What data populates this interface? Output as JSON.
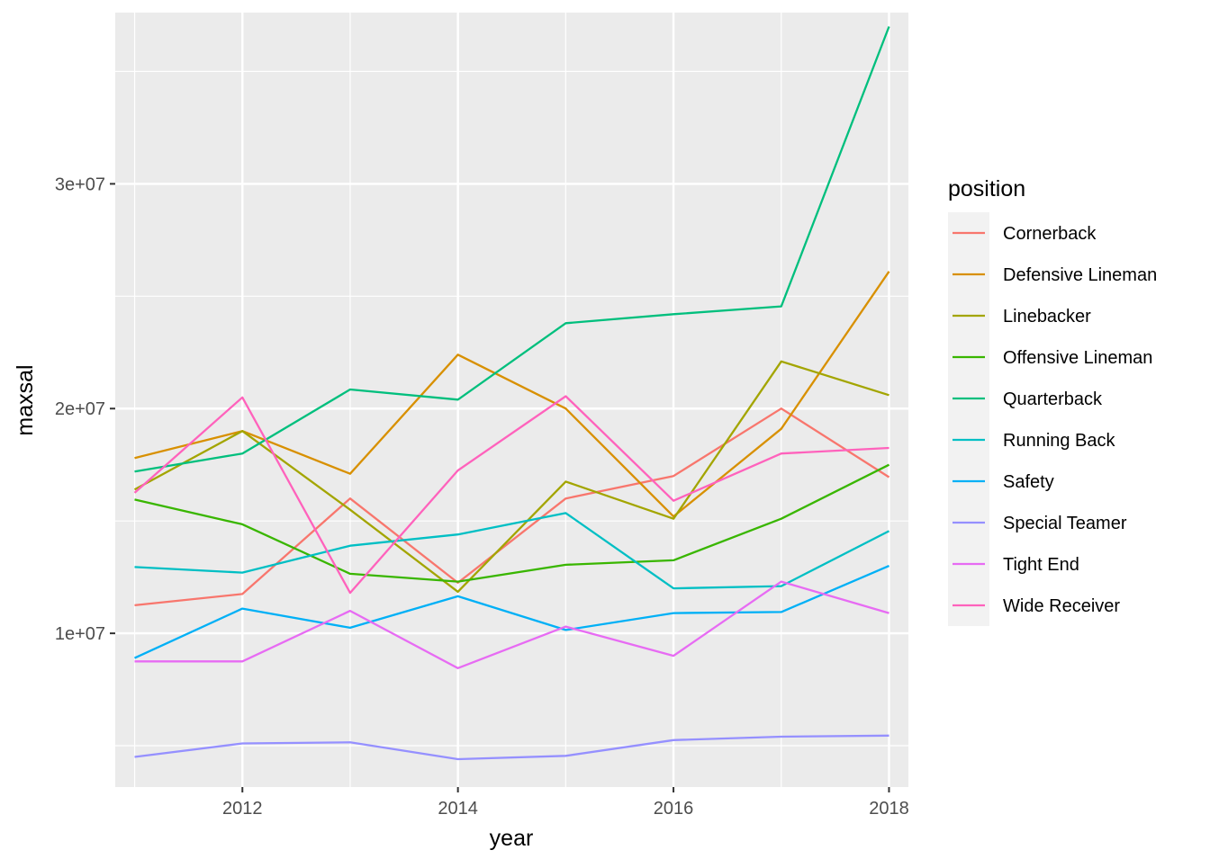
{
  "chart_data": {
    "type": "line",
    "title": "",
    "xlabel": "year",
    "ylabel": "maxsal",
    "xlim": [
      2010.82,
      2018.18
    ],
    "ylim": [
      3160000,
      37620000
    ],
    "x_ticks": [
      2012,
      2014,
      2016,
      2018
    ],
    "x_tick_labels": [
      "2012",
      "2014",
      "2016",
      "2018"
    ],
    "y_ticks": [
      10000000,
      20000000,
      30000000
    ],
    "y_tick_labels": [
      "1e+07",
      "2e+07",
      "3e+07"
    ],
    "grid": true,
    "legend": {
      "title": "position",
      "placement": "right"
    },
    "x": [
      2011,
      2012,
      2013,
      2014,
      2015,
      2016,
      2017,
      2018
    ],
    "series": [
      {
        "name": "Cornerback",
        "color": "#F8766D",
        "values": [
          11250000,
          11750000,
          16000000,
          12250000,
          16000000,
          17000000,
          20000000,
          16950000
        ]
      },
      {
        "name": "Defensive Lineman",
        "color": "#D89000",
        "values": [
          17800000,
          19000000,
          17100000,
          22400000,
          20000000,
          15200000,
          19100000,
          26100000
        ]
      },
      {
        "name": "Linebacker",
        "color": "#A3A500",
        "values": [
          16400000,
          19000000,
          15500000,
          11850000,
          16750000,
          15100000,
          22100000,
          20600000
        ]
      },
      {
        "name": "Offensive Lineman",
        "color": "#39B600",
        "values": [
          15950000,
          14850000,
          12650000,
          12300000,
          13050000,
          13250000,
          15100000,
          17500000
        ]
      },
      {
        "name": "Quarterback",
        "color": "#00BF7D",
        "values": [
          17200000,
          18000000,
          20850000,
          20400000,
          23800000,
          24200000,
          24550000,
          37000000
        ]
      },
      {
        "name": "Running Back",
        "color": "#00BFC4",
        "values": [
          12950000,
          12700000,
          13900000,
          14400000,
          15350000,
          12000000,
          12100000,
          14550000
        ]
      },
      {
        "name": "Safety",
        "color": "#00B0F6",
        "values": [
          8900000,
          11100000,
          10250000,
          11650000,
          10150000,
          10900000,
          10950000,
          13000000
        ]
      },
      {
        "name": "Special Teamer",
        "color": "#9590FF",
        "values": [
          4500000,
          5100000,
          5150000,
          4400000,
          4550000,
          5250000,
          5400000,
          5450000
        ]
      },
      {
        "name": "Tight End",
        "color": "#E76BF3",
        "values": [
          8750000,
          8750000,
          11000000,
          8450000,
          10300000,
          9000000,
          12300000,
          10900000
        ]
      },
      {
        "name": "Wide Receiver",
        "color": "#FF62BC",
        "values": [
          16250000,
          20500000,
          11800000,
          17250000,
          20550000,
          15900000,
          18000000,
          18250000
        ]
      }
    ]
  }
}
